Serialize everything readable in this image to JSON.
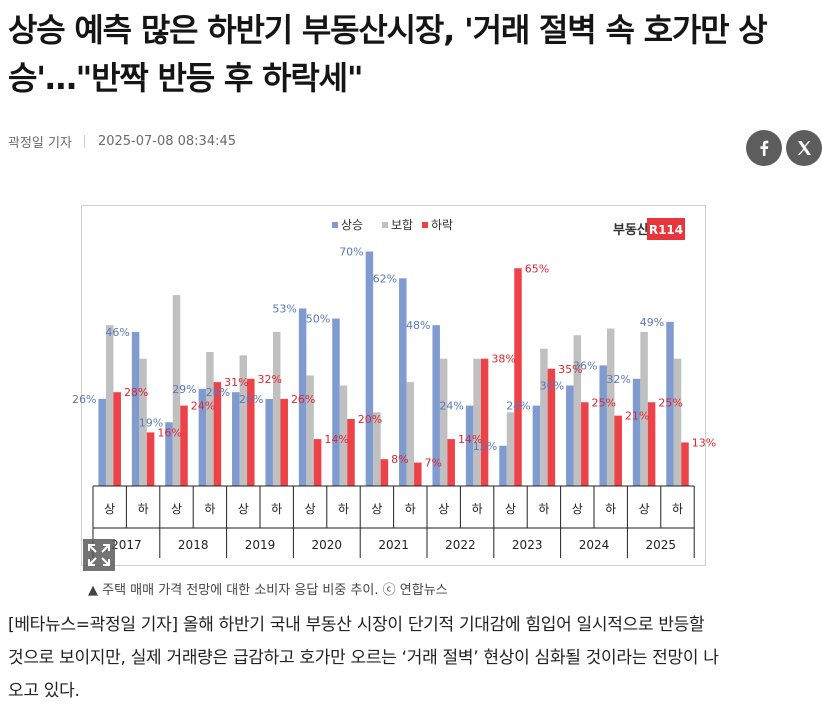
{
  "headline": {
    "line1": "상승 예측 많은 하반기 부동산시장, '거래 절벽 속 호가만 상",
    "line2": "승'…\"반짝 반등 후 하락세\""
  },
  "meta": {
    "author": "곽정일 기자",
    "datetime": "2025-07-08 08:34:45"
  },
  "share": {
    "facebook_icon": "facebook-icon",
    "x_icon": "x-icon"
  },
  "chart_data": {
    "type": "bar",
    "logo_text": "부동산",
    "logo_badge": "R114",
    "legend": [
      "상승",
      "보합",
      "하락"
    ],
    "colors": {
      "상승": "#7f9bd0",
      "보합": "#c0c0c0",
      "하락": "#ee4249"
    },
    "years": [
      "2017",
      "2018",
      "2019",
      "2020",
      "2021",
      "2022",
      "2023",
      "2024",
      "2025"
    ],
    "halves": [
      "상",
      "하"
    ],
    "series": [
      {
        "name": "상승",
        "values": [
          26,
          46,
          19,
          29,
          28,
          26,
          53,
          50,
          70,
          62,
          48,
          24,
          12,
          24,
          30,
          36,
          32,
          49
        ],
        "labels": [
          "26%",
          "46%",
          "19%",
          "29%",
          "28%",
          "26%",
          "53%",
          "50%",
          "70%",
          "62%",
          "48%",
          "24%",
          "12%",
          "24%",
          "30%",
          "36%",
          "32%",
          "49%"
        ]
      },
      {
        "name": "보합",
        "values": [
          48,
          38,
          57,
          40,
          39,
          46,
          33,
          30,
          22,
          31,
          38,
          38,
          22,
          41,
          45,
          47,
          46,
          38
        ],
        "labels": []
      },
      {
        "name": "하락",
        "values": [
          28,
          16,
          24,
          31,
          32,
          26,
          14,
          20,
          8,
          7,
          14,
          38,
          65,
          35,
          25,
          21,
          25,
          13
        ],
        "labels": [
          "28%",
          "16%",
          "24%",
          "31%",
          "32%",
          "26%",
          "14%",
          "20%",
          "8%",
          "7%",
          "14%",
          "38%",
          "65%",
          "35%",
          "25%",
          "21%",
          "25%",
          "13%"
        ]
      }
    ],
    "ylim": [
      0,
      75
    ]
  },
  "caption": "▲ 주택 매매 가격 전망에 대한 소비자 응답 비중 추이. ⓒ 연합뉴스",
  "body": [
    "[베타뉴스=곽정일 기자] 올해 하반기 국내 부동산 시장이 단기적 기대감에 힘입어 일시적으로 반등할",
    "것으로 보이지만, 실제 거래량은 급감하고 호가만 오르는 ‘거래 절벽’ 현상이 심화될 것이라는 전망이 나",
    "오고 있다."
  ]
}
